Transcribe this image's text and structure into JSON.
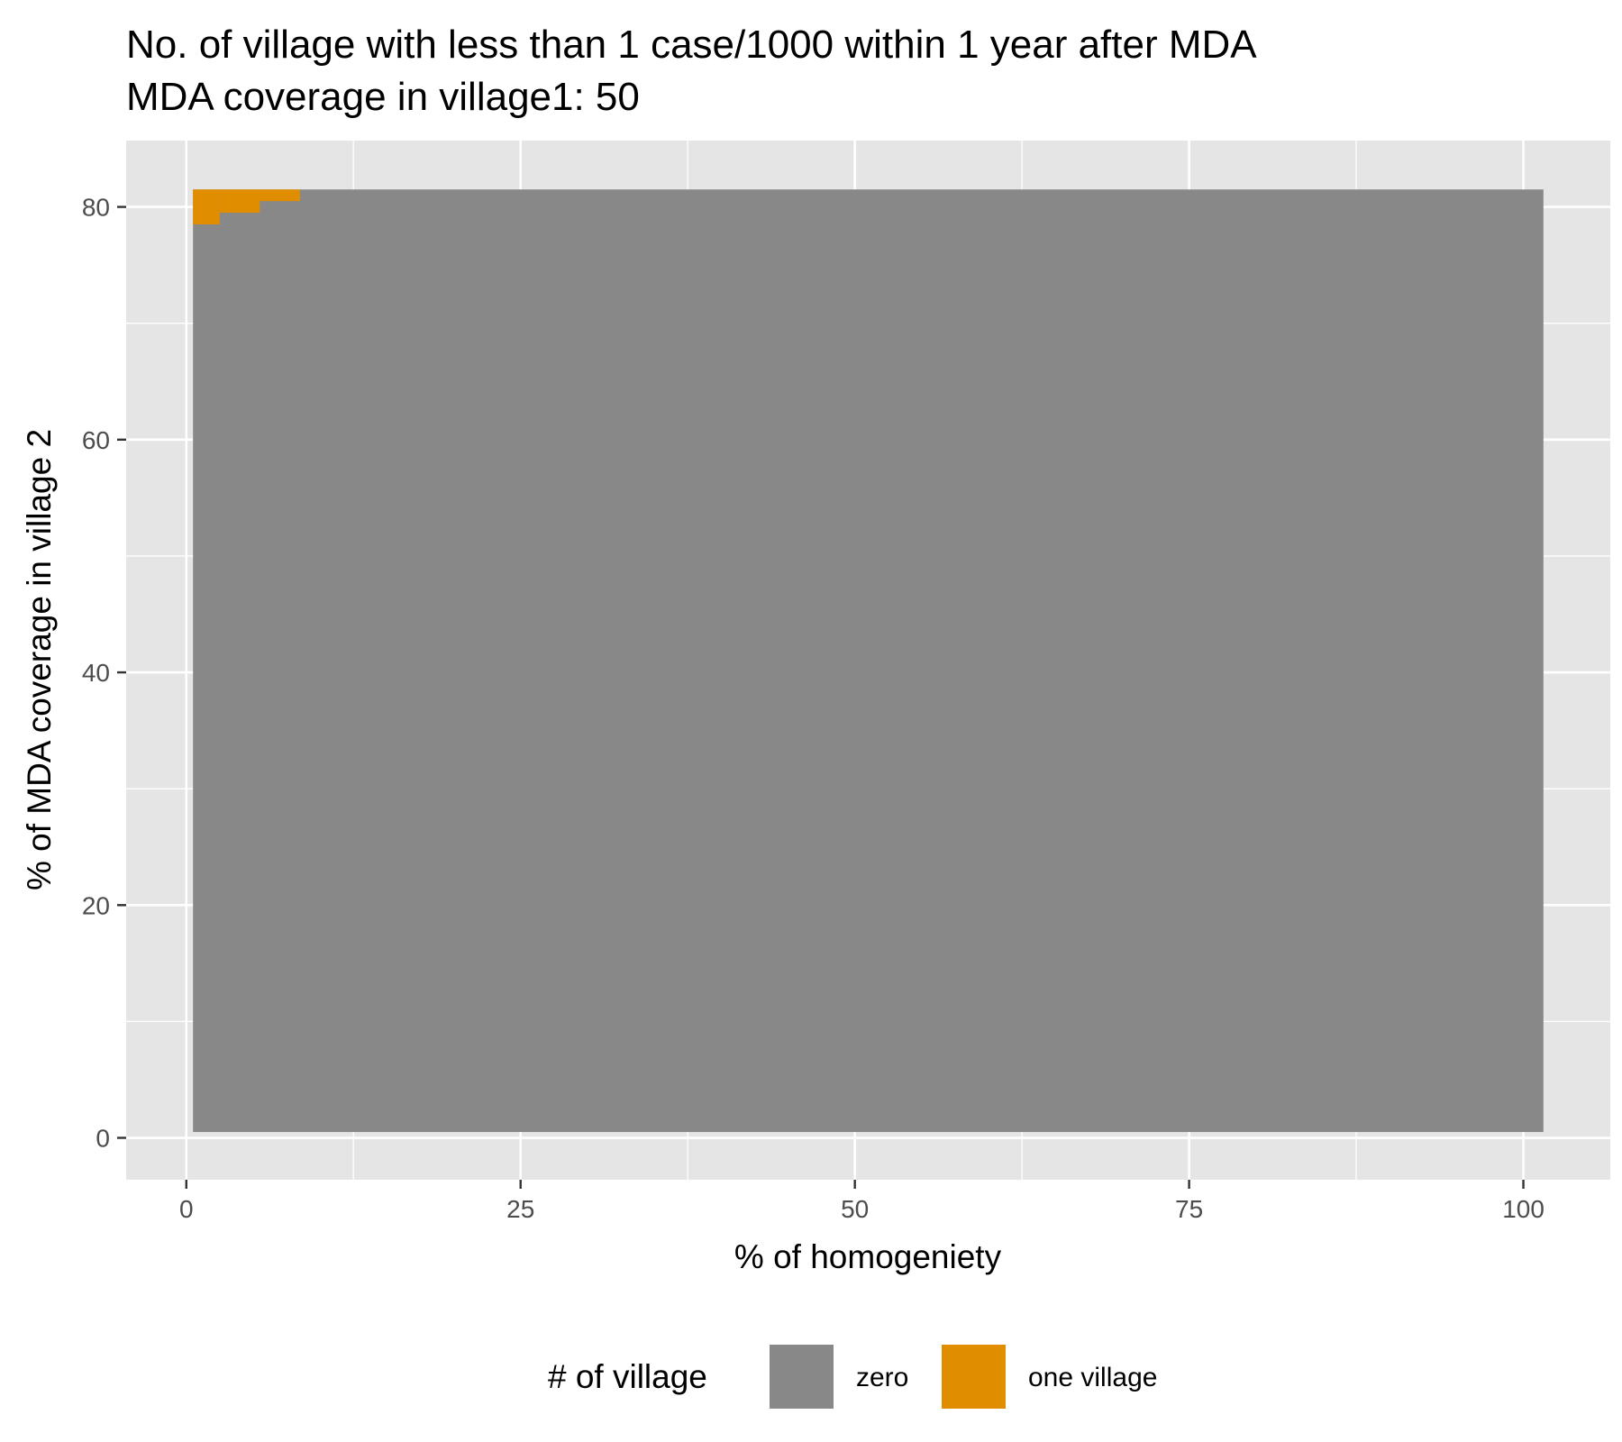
{
  "chart_data": {
    "type": "heatmap",
    "title": "No. of village with less than 1 case/1000 within 1 year after MDA",
    "subtitle": "MDA coverage in village1: 50",
    "xlabel": "% of homogeniety",
    "ylabel": "% of MDA coverage in village 2",
    "x_ticks": [
      "0",
      "25",
      "50",
      "75",
      "100"
    ],
    "y_ticks": [
      "0",
      "20",
      "40",
      "60",
      "80"
    ],
    "xlim": [
      -4.5,
      106.5
    ],
    "ylim": [
      -3.6,
      85.7
    ],
    "grid": true,
    "legend": {
      "title": "# of village",
      "position": "bottom",
      "items": [
        {
          "label": "zero",
          "color": "#888888"
        },
        {
          "label": "one village",
          "color": "#E08E00"
        }
      ]
    },
    "tiles": [
      {
        "x0": 0.5,
        "x1": 101.5,
        "y0": 0.5,
        "y1": 81.5,
        "category": "zero"
      },
      {
        "x0": 0.5,
        "x1": 2.5,
        "y0": 78.5,
        "y1": 81.5,
        "category": "one village"
      },
      {
        "x0": 2.5,
        "x1": 5.5,
        "y0": 79.5,
        "y1": 81.5,
        "category": "one village"
      },
      {
        "x0": 5.5,
        "x1": 8.5,
        "y0": 80.5,
        "y1": 81.5,
        "category": "one village"
      }
    ]
  }
}
